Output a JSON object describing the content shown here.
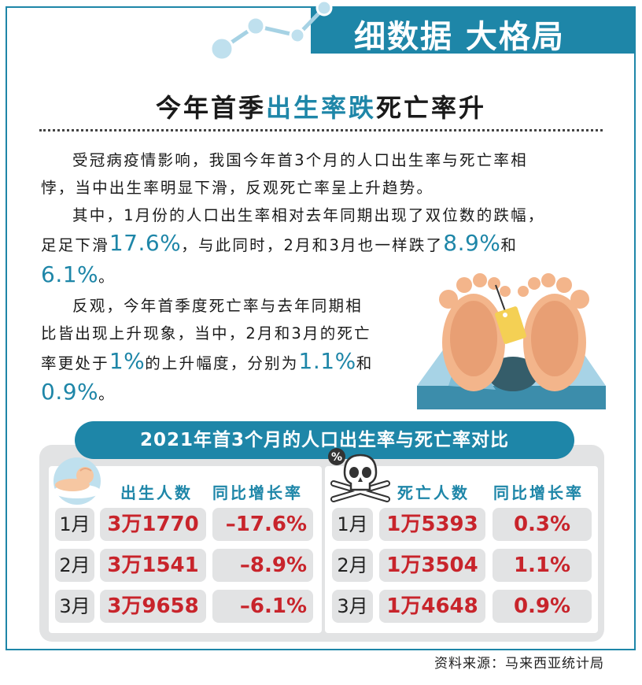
{
  "banner_title": "细数据 大格局",
  "headline": {
    "part1": "今年首季",
    "part2": "出生率跌",
    "part3": "死亡率升"
  },
  "para1": {
    "line1": "受冠病疫情影响，我国今年首3个月的人口出生率与死亡率相",
    "line2": "悖，当中出生率明显下滑，反观死亡率呈上升趋势。"
  },
  "para2": {
    "line1": "其中，1月份的人口出生率相对去年同期出现了双位数的跌幅，",
    "line2a": "足足下滑",
    "n1": "17.6%",
    "line2b": "，与此同时，2月和3月也一样跌了",
    "n2": "8.9%",
    "line2c": "和",
    "n3": "6.1%",
    "line3b": "。"
  },
  "para3": {
    "line1": "反观，今年首季度死亡率与去年同期相",
    "line2": "比皆出现上升现象，当中，2月和3月的死亡",
    "line3a": "率更处于",
    "n1": "1%",
    "line3b": "的上升幅度，分别为",
    "n2": "1.1%",
    "line3c": "和",
    "n3": "0.9%",
    "line4b": "。"
  },
  "table_title": "2021年首3个月的人口出生率与死亡率对比",
  "births": {
    "col1": "出生人数",
    "col2": "同比增长率",
    "rows": [
      {
        "month": "1月",
        "count": "3万1770",
        "rate": "–17.6%"
      },
      {
        "month": "2月",
        "count": "3万1541",
        "rate": "–8.9%"
      },
      {
        "month": "3月",
        "count": "3万9658",
        "rate": "–6.1%"
      }
    ]
  },
  "deaths": {
    "badge": "%",
    "col1": "死亡人数",
    "col2": "同比增长率",
    "rows": [
      {
        "month": "1月",
        "count": "1万5393",
        "rate": "0.3%"
      },
      {
        "month": "2月",
        "count": "1万3504",
        "rate": "1.1%"
      },
      {
        "month": "3月",
        "count": "1万4648",
        "rate": "0.9%"
      }
    ]
  },
  "source": "资料来源：马来西亚统计局",
  "colors": {
    "accent": "#1e86a8",
    "value": "#c8242b",
    "cell": "#e2e3e4"
  },
  "icons": {
    "banner": "trend-line-icon",
    "birth": "baby-icon",
    "death": "skull-crossbones-icon",
    "illustration": "feet-with-toe-tag-illustration"
  }
}
